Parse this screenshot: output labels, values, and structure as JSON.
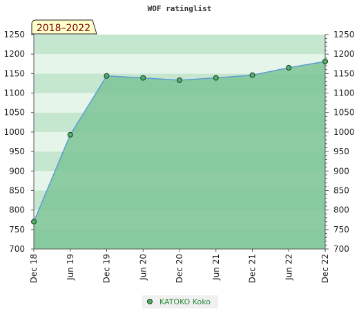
{
  "chart_data": {
    "type": "area",
    "title": "WOF ratinglist",
    "badge": "2018–2022",
    "categories": [
      "Dec 18",
      "Jun 19",
      "Dec 19",
      "Jun 20",
      "Dec 20",
      "Jun 21",
      "Dec 21",
      "Jun 22",
      "Dec 22"
    ],
    "series": [
      {
        "name": "KATOKO Koko",
        "values": [
          770,
          993,
          1144,
          1139,
          1133,
          1139,
          1146,
          1165,
          1181
        ]
      }
    ],
    "ylim": [
      700,
      1250
    ],
    "yticks": [
      700,
      750,
      800,
      850,
      900,
      950,
      1000,
      1050,
      1100,
      1150,
      1200,
      1250
    ],
    "grid": true,
    "legend": "bottom-center",
    "colors": {
      "fill": "#7dc496",
      "line": "#5b9bd5",
      "marker": "#4caf6a",
      "band_dark": "#c5e6cf",
      "band_light": "#e6f5ea",
      "badge_bg": "#ffffcc",
      "badge_text": "#7a0000",
      "legend_text": "#2e8b3e"
    }
  }
}
